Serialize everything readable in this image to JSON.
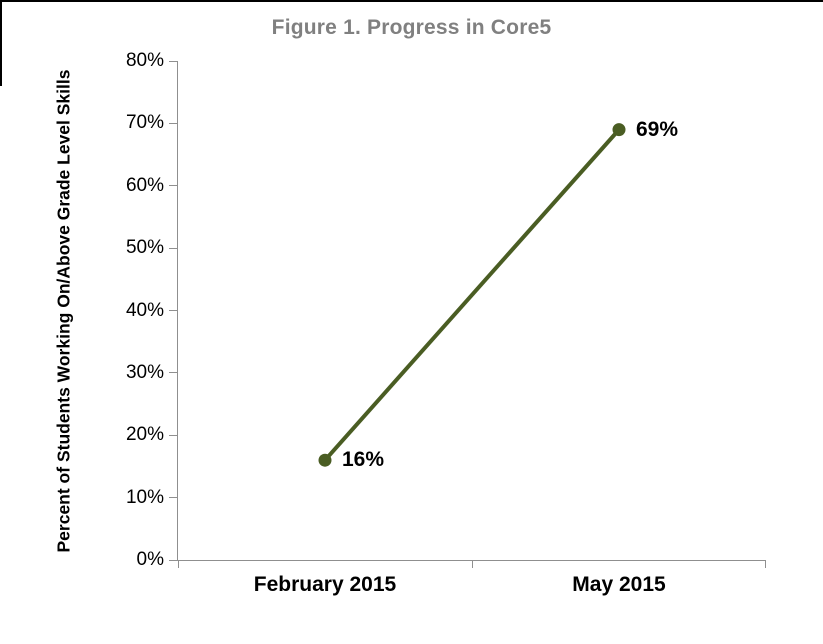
{
  "window": {
    "border_color": "#000000"
  },
  "chart_data": {
    "type": "line",
    "title": "Figure 1. Progress in Core5",
    "categories": [
      "February 2015",
      "May 2015"
    ],
    "values": [
      16,
      69
    ],
    "data_labels": [
      "16%",
      "69%"
    ],
    "xlabel": "",
    "ylabel": "Percent of Students Working On/Above Grade Level Skills",
    "ylim": [
      0,
      80
    ],
    "yticks": [
      {
        "value": 0,
        "label": "0%"
      },
      {
        "value": 10,
        "label": "10%"
      },
      {
        "value": 20,
        "label": "20%"
      },
      {
        "value": 30,
        "label": "30%"
      },
      {
        "value": 40,
        "label": "40%"
      },
      {
        "value": 50,
        "label": "50%"
      },
      {
        "value": 60,
        "label": "60%"
      },
      {
        "value": 70,
        "label": "70%"
      },
      {
        "value": 80,
        "label": "80%"
      }
    ],
    "grid": false,
    "legend": "none",
    "marker": "circle",
    "colors": {
      "line": "#4a5d23",
      "marker": "#4a5d23",
      "title": "#808080",
      "axis": "#8f8f8f",
      "text": "#000000"
    }
  }
}
